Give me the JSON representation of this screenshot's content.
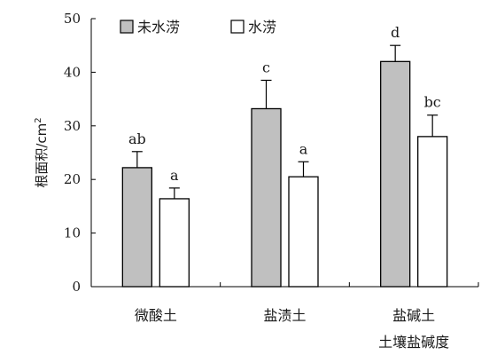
{
  "chart_data": {
    "type": "bar",
    "title": "",
    "xlabel": "土壤盐碱度",
    "ylabel": "根面积/cm",
    "ylabel_superscript": "2",
    "ylim": [
      0,
      50
    ],
    "yticks": [
      "0",
      "10",
      "20",
      "30",
      "40",
      "50"
    ],
    "categories": [
      "微酸土",
      "盐渍土",
      "盐碱土"
    ],
    "legend_position": "top-left",
    "grid": false,
    "series": [
      {
        "name": "未水涝",
        "color": "#c0c0c0",
        "values": [
          22.2,
          33.2,
          42.0
        ],
        "errors": [
          3.0,
          5.3,
          3.0
        ],
        "letters": [
          "ab",
          "c",
          "d"
        ]
      },
      {
        "name": "水涝",
        "color": "#ffffff",
        "values": [
          16.4,
          20.5,
          28.0
        ],
        "errors": [
          2.0,
          2.8,
          4.0
        ],
        "letters": [
          "a",
          "a",
          "bc"
        ]
      }
    ]
  }
}
